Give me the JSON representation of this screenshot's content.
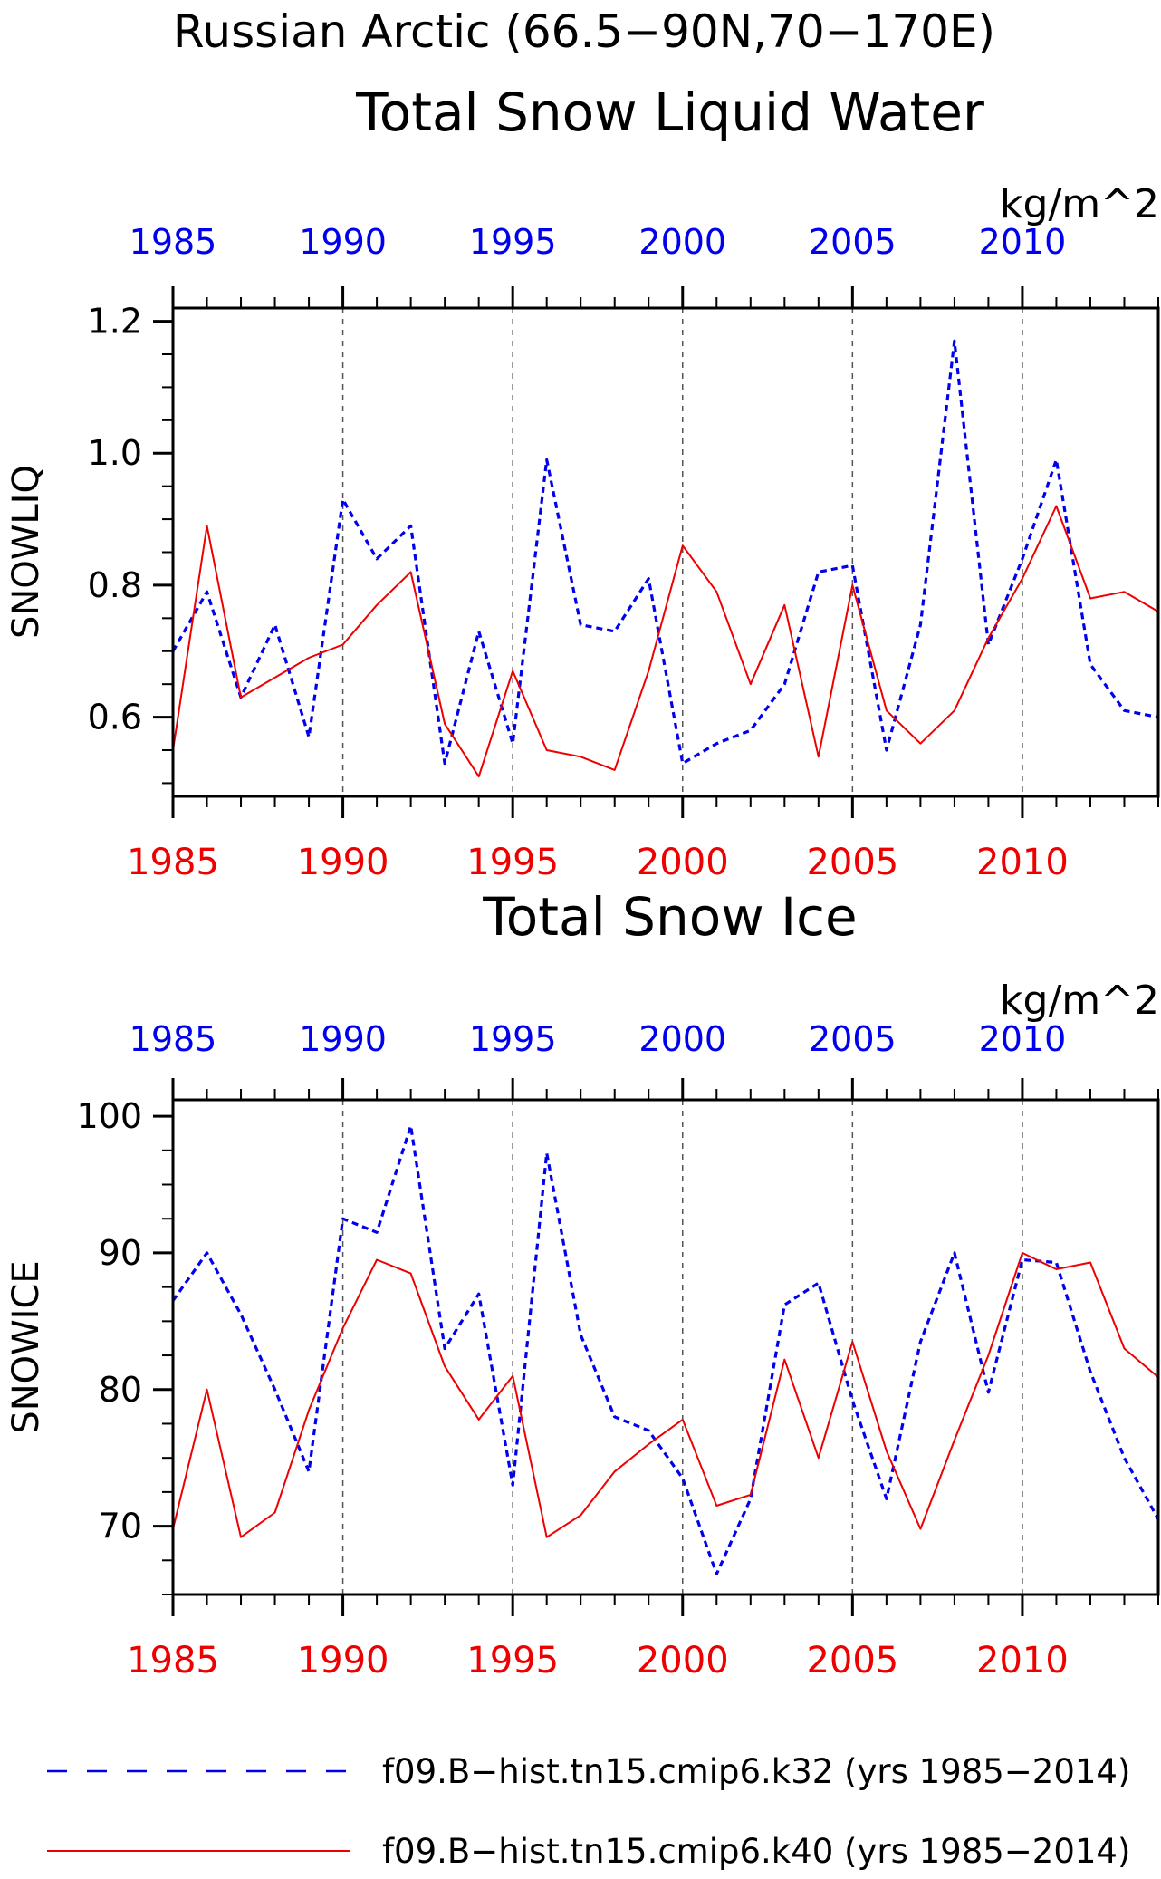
{
  "title": "Russian Arctic (66.5−90N,70−170E)",
  "colors": {
    "series_a": "#0000ee",
    "series_b": "#ee0000",
    "axis": "#000000",
    "grid": "#555555"
  },
  "legend": {
    "items": [
      {
        "label": "f09.B−hist.tn15.cmip6.k32 (yrs 1985−2014)",
        "color": "#0000ee",
        "style": "dashed"
      },
      {
        "label": "f09.B−hist.tn15.cmip6.k40 (yrs 1985−2014)",
        "color": "#ee0000",
        "style": "solid"
      }
    ]
  },
  "chart_data": [
    {
      "type": "line",
      "title": "Total Snow Liquid Water",
      "units": "kg/m^2",
      "ylabel": "SNOWLIQ",
      "xlabel": "",
      "xlim": [
        1985,
        2014
      ],
      "ylim": [
        0.48,
        1.22
      ],
      "xticks": [
        1985,
        1990,
        1995,
        2000,
        2005,
        2010
      ],
      "yticks": [
        0.6,
        0.8,
        1.0,
        1.2
      ],
      "ytick_labels": [
        "0.6",
        "0.8",
        "1.0",
        "1.2"
      ],
      "grid_x": true,
      "top_axis_labels": [
        "1985",
        "1990",
        "1995",
        "2000",
        "2005",
        "2010"
      ],
      "bottom_axis_labels": [
        "1985",
        "1990",
        "1995",
        "2000",
        "2005",
        "2010"
      ],
      "series": [
        {
          "color": "#0000ee",
          "style": "dashed",
          "x": [
            1985,
            1986,
            1987,
            1988,
            1989,
            1990,
            1991,
            1992,
            1993,
            1994,
            1995,
            1996,
            1997,
            1998,
            1999,
            2000,
            2001,
            2002,
            2003,
            2004,
            2005,
            2006,
            2007,
            2008,
            2009,
            2010,
            2011,
            2012,
            2013,
            2014
          ],
          "values": [
            0.7,
            0.79,
            0.63,
            0.74,
            0.57,
            0.93,
            0.84,
            0.89,
            0.53,
            0.73,
            0.56,
            0.99,
            0.74,
            0.73,
            0.81,
            0.53,
            0.56,
            0.58,
            0.65,
            0.82,
            0.83,
            0.55,
            0.74,
            1.17,
            0.71,
            0.84,
            0.99,
            0.68,
            0.61,
            0.6
          ]
        },
        {
          "color": "#ee0000",
          "style": "solid",
          "x": [
            1985,
            1986,
            1987,
            1988,
            1989,
            1990,
            1991,
            1992,
            1993,
            1994,
            1995,
            1996,
            1997,
            1998,
            1999,
            2000,
            2001,
            2002,
            2003,
            2004,
            2005,
            2006,
            2007,
            2008,
            2009,
            2010,
            2011,
            2012,
            2013,
            2014
          ],
          "values": [
            0.55,
            0.89,
            0.63,
            0.66,
            0.69,
            0.71,
            0.77,
            0.82,
            0.59,
            0.51,
            0.67,
            0.55,
            0.54,
            0.52,
            0.67,
            0.86,
            0.79,
            0.65,
            0.77,
            0.54,
            0.8,
            0.61,
            0.56,
            0.61,
            0.72,
            0.81,
            0.92,
            0.78,
            0.79,
            0.76
          ]
        }
      ]
    },
    {
      "type": "line",
      "title": "Total Snow Ice",
      "units": "kg/m^2",
      "ylabel": "SNOWICE",
      "xlabel": "",
      "xlim": [
        1985,
        2014
      ],
      "ylim": [
        65,
        101.2
      ],
      "xticks": [
        1985,
        1990,
        1995,
        2000,
        2005,
        2010
      ],
      "yticks": [
        70,
        80,
        90,
        100
      ],
      "ytick_labels": [
        "70",
        "80",
        "90",
        "100"
      ],
      "grid_x": true,
      "top_axis_labels": [
        "1985",
        "1990",
        "1995",
        "2000",
        "2005",
        "2010"
      ],
      "bottom_axis_labels": [
        "1985",
        "1990",
        "1995",
        "2000",
        "2005",
        "2010"
      ],
      "series": [
        {
          "color": "#0000ee",
          "style": "dashed",
          "x": [
            1985,
            1986,
            1987,
            1988,
            1989,
            1990,
            1991,
            1992,
            1993,
            1994,
            1995,
            1996,
            1997,
            1998,
            1999,
            2000,
            2001,
            2002,
            2003,
            2004,
            2005,
            2006,
            2007,
            2008,
            2009,
            2010,
            2011,
            2012,
            2013,
            2014
          ],
          "values": [
            86.5,
            90.0,
            85.5,
            80.0,
            74.0,
            92.5,
            91.5,
            99.3,
            83.0,
            87.0,
            73.0,
            97.3,
            84.0,
            78.0,
            77.0,
            73.5,
            66.5,
            72.0,
            86.2,
            87.8,
            79.2,
            72.0,
            83.5,
            90.0,
            79.8,
            89.5,
            89.3,
            81.3,
            75.0,
            70.5
          ]
        },
        {
          "color": "#ee0000",
          "style": "solid",
          "x": [
            1985,
            1986,
            1987,
            1988,
            1989,
            1990,
            1991,
            1992,
            1993,
            1994,
            1995,
            1996,
            1997,
            1998,
            1999,
            2000,
            2001,
            2002,
            2003,
            2004,
            2005,
            2006,
            2007,
            2008,
            2009,
            2010,
            2011,
            2012,
            2013,
            2014
          ],
          "values": [
            69.8,
            80.0,
            69.2,
            71.0,
            78.5,
            84.5,
            89.5,
            88.5,
            81.7,
            77.8,
            81.0,
            69.2,
            70.8,
            74.0,
            76.0,
            77.8,
            71.5,
            72.3,
            82.2,
            75.0,
            83.5,
            75.5,
            69.8,
            76.3,
            82.5,
            90.0,
            88.8,
            89.3,
            83.0,
            80.9
          ]
        }
      ]
    }
  ]
}
